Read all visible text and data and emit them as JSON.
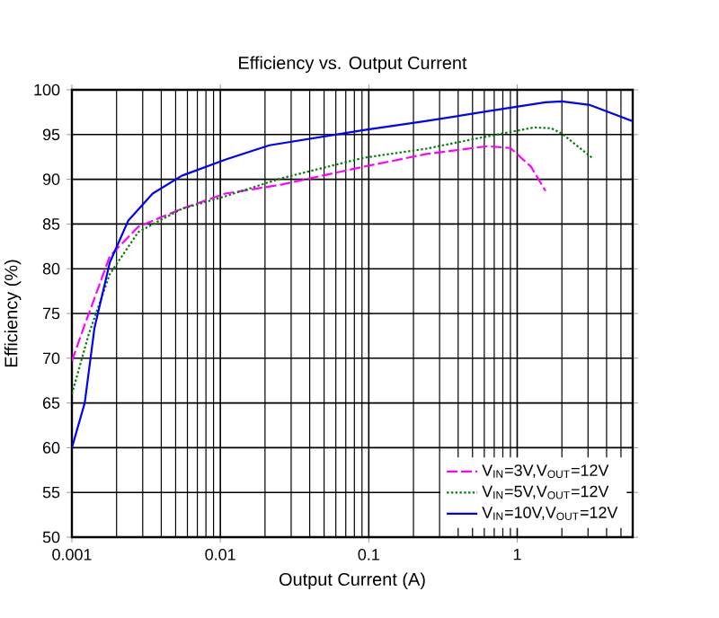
{
  "chart_data": {
    "type": "line",
    "title": "Efficiency vs. Output Current",
    "xlabel": "Output Current (A)",
    "ylabel": "Efficiency (%)",
    "log": "x",
    "grid": true,
    "legend": "bottom right",
    "xlim": [
      0.001,
      6
    ],
    "ylim": [
      50,
      100
    ],
    "xticks": [
      0.001,
      0.01,
      0.1,
      1
    ],
    "yticks": [
      50,
      55,
      60,
      65,
      70,
      75,
      80,
      85,
      90,
      95,
      100
    ],
    "series": [
      {
        "name": "V$_{IN}$=3V,V$_{OUT}$=12V",
        "color": "#ff00ff",
        "line_style": "dashed",
        "x": [
          0.001,
          0.0012,
          0.0018,
          0.0028,
          0.0055,
          0.0108,
          0.0256,
          0.092,
          0.24,
          0.63,
          0.9,
          1.24,
          1.55
        ],
        "values": [
          69.7,
          73.4,
          81.4,
          84.7,
          86.7,
          88.4,
          89.4,
          91.4,
          92.8,
          93.7,
          93.5,
          91.4,
          88.7
        ]
      },
      {
        "name": "V$_{IN}$=5V,V$_{OUT}$=12V",
        "color": "#008000",
        "line_style": "dotted",
        "x": [
          0.001,
          0.0013,
          0.0018,
          0.0028,
          0.0055,
          0.0108,
          0.0256,
          0.092,
          0.24,
          0.63,
          1.3,
          1.7,
          2,
          3.2
        ],
        "values": [
          66.0,
          72.7,
          79.4,
          84.1,
          86.7,
          88.1,
          90.1,
          92.4,
          93.4,
          94.8,
          95.8,
          95.7,
          95.1,
          92.4
        ]
      },
      {
        "name": "V$_{IN}$=10V,V$_{OUT}$=12V",
        "color": "#0000ff",
        "line_style": "solid",
        "x": [
          0.001,
          0.00122,
          0.00142,
          0.0018,
          0.0024,
          0.0035,
          0.0055,
          0.0108,
          0.0214,
          0.092,
          0.24,
          0.63,
          1.55,
          2,
          3.1,
          6
        ],
        "values": [
          60,
          65,
          73.4,
          80.7,
          85.4,
          88.4,
          90.4,
          92.2,
          93.8,
          95.5,
          96.5,
          97.6,
          98.6,
          98.7,
          98.3,
          96.5
        ]
      }
    ]
  }
}
